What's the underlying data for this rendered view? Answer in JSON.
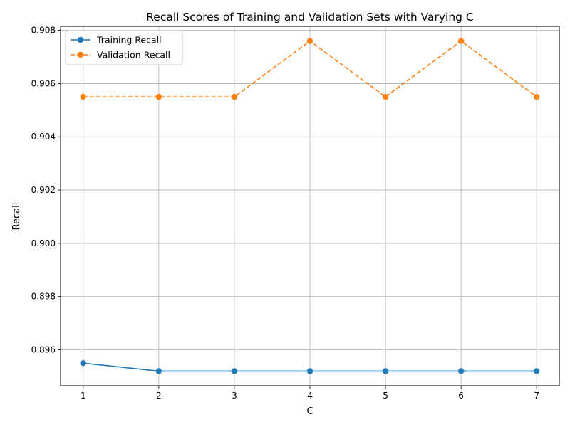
{
  "chart_data": {
    "type": "line",
    "title": "Recall Scores of Training and Validation Sets with Varying C",
    "xlabel": "C",
    "ylabel": "Recall",
    "x": [
      1,
      2,
      3,
      4,
      5,
      6,
      7
    ],
    "xlim": [
      0.7,
      7.3
    ],
    "ylim": [
      0.89465,
      0.90815
    ],
    "xticks": [
      1,
      2,
      3,
      4,
      5,
      6,
      7
    ],
    "yticks": [
      0.896,
      0.898,
      0.9,
      0.902,
      0.904,
      0.906,
      0.908
    ],
    "ytick_labels": [
      "0.896",
      "0.898",
      "0.900",
      "0.902",
      "0.904",
      "0.906",
      "0.908"
    ],
    "grid": true,
    "legend_position": "top-left",
    "series": [
      {
        "name": "Training Recall",
        "values": [
          0.8955,
          0.8952,
          0.8952,
          0.8952,
          0.8952,
          0.8952,
          0.8952
        ],
        "color": "#1f77b4",
        "linestyle": "solid",
        "marker": "circle"
      },
      {
        "name": "Validation Recall",
        "values": [
          0.9055,
          0.9055,
          0.9055,
          0.9076,
          0.9055,
          0.9076,
          0.9055
        ],
        "color": "#ff7f0e",
        "linestyle": "dashed",
        "marker": "circle"
      }
    ]
  }
}
